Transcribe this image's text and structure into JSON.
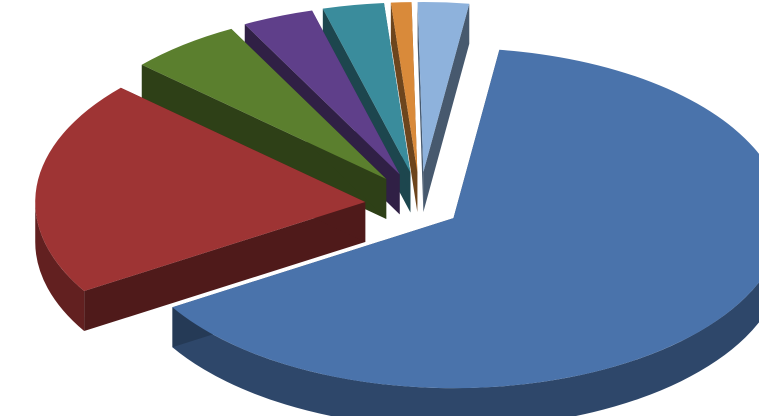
{
  "chart_data": {
    "type": "pie",
    "style": "3d-exploded",
    "title": "",
    "legend": "none",
    "slices": [
      {
        "value": 64.0,
        "color": "#4a73ab"
      },
      {
        "value": 20.5,
        "color": "#9e3434"
      },
      {
        "value": 5.5,
        "color": "#5b7f2e"
      },
      {
        "value": 3.5,
        "color": "#5f3f8a"
      },
      {
        "value": 3.0,
        "color": "#3a8c9c"
      },
      {
        "value": 1.0,
        "color": "#d98a3a"
      },
      {
        "value": 2.5,
        "color": "#8eb2dc"
      }
    ]
  }
}
